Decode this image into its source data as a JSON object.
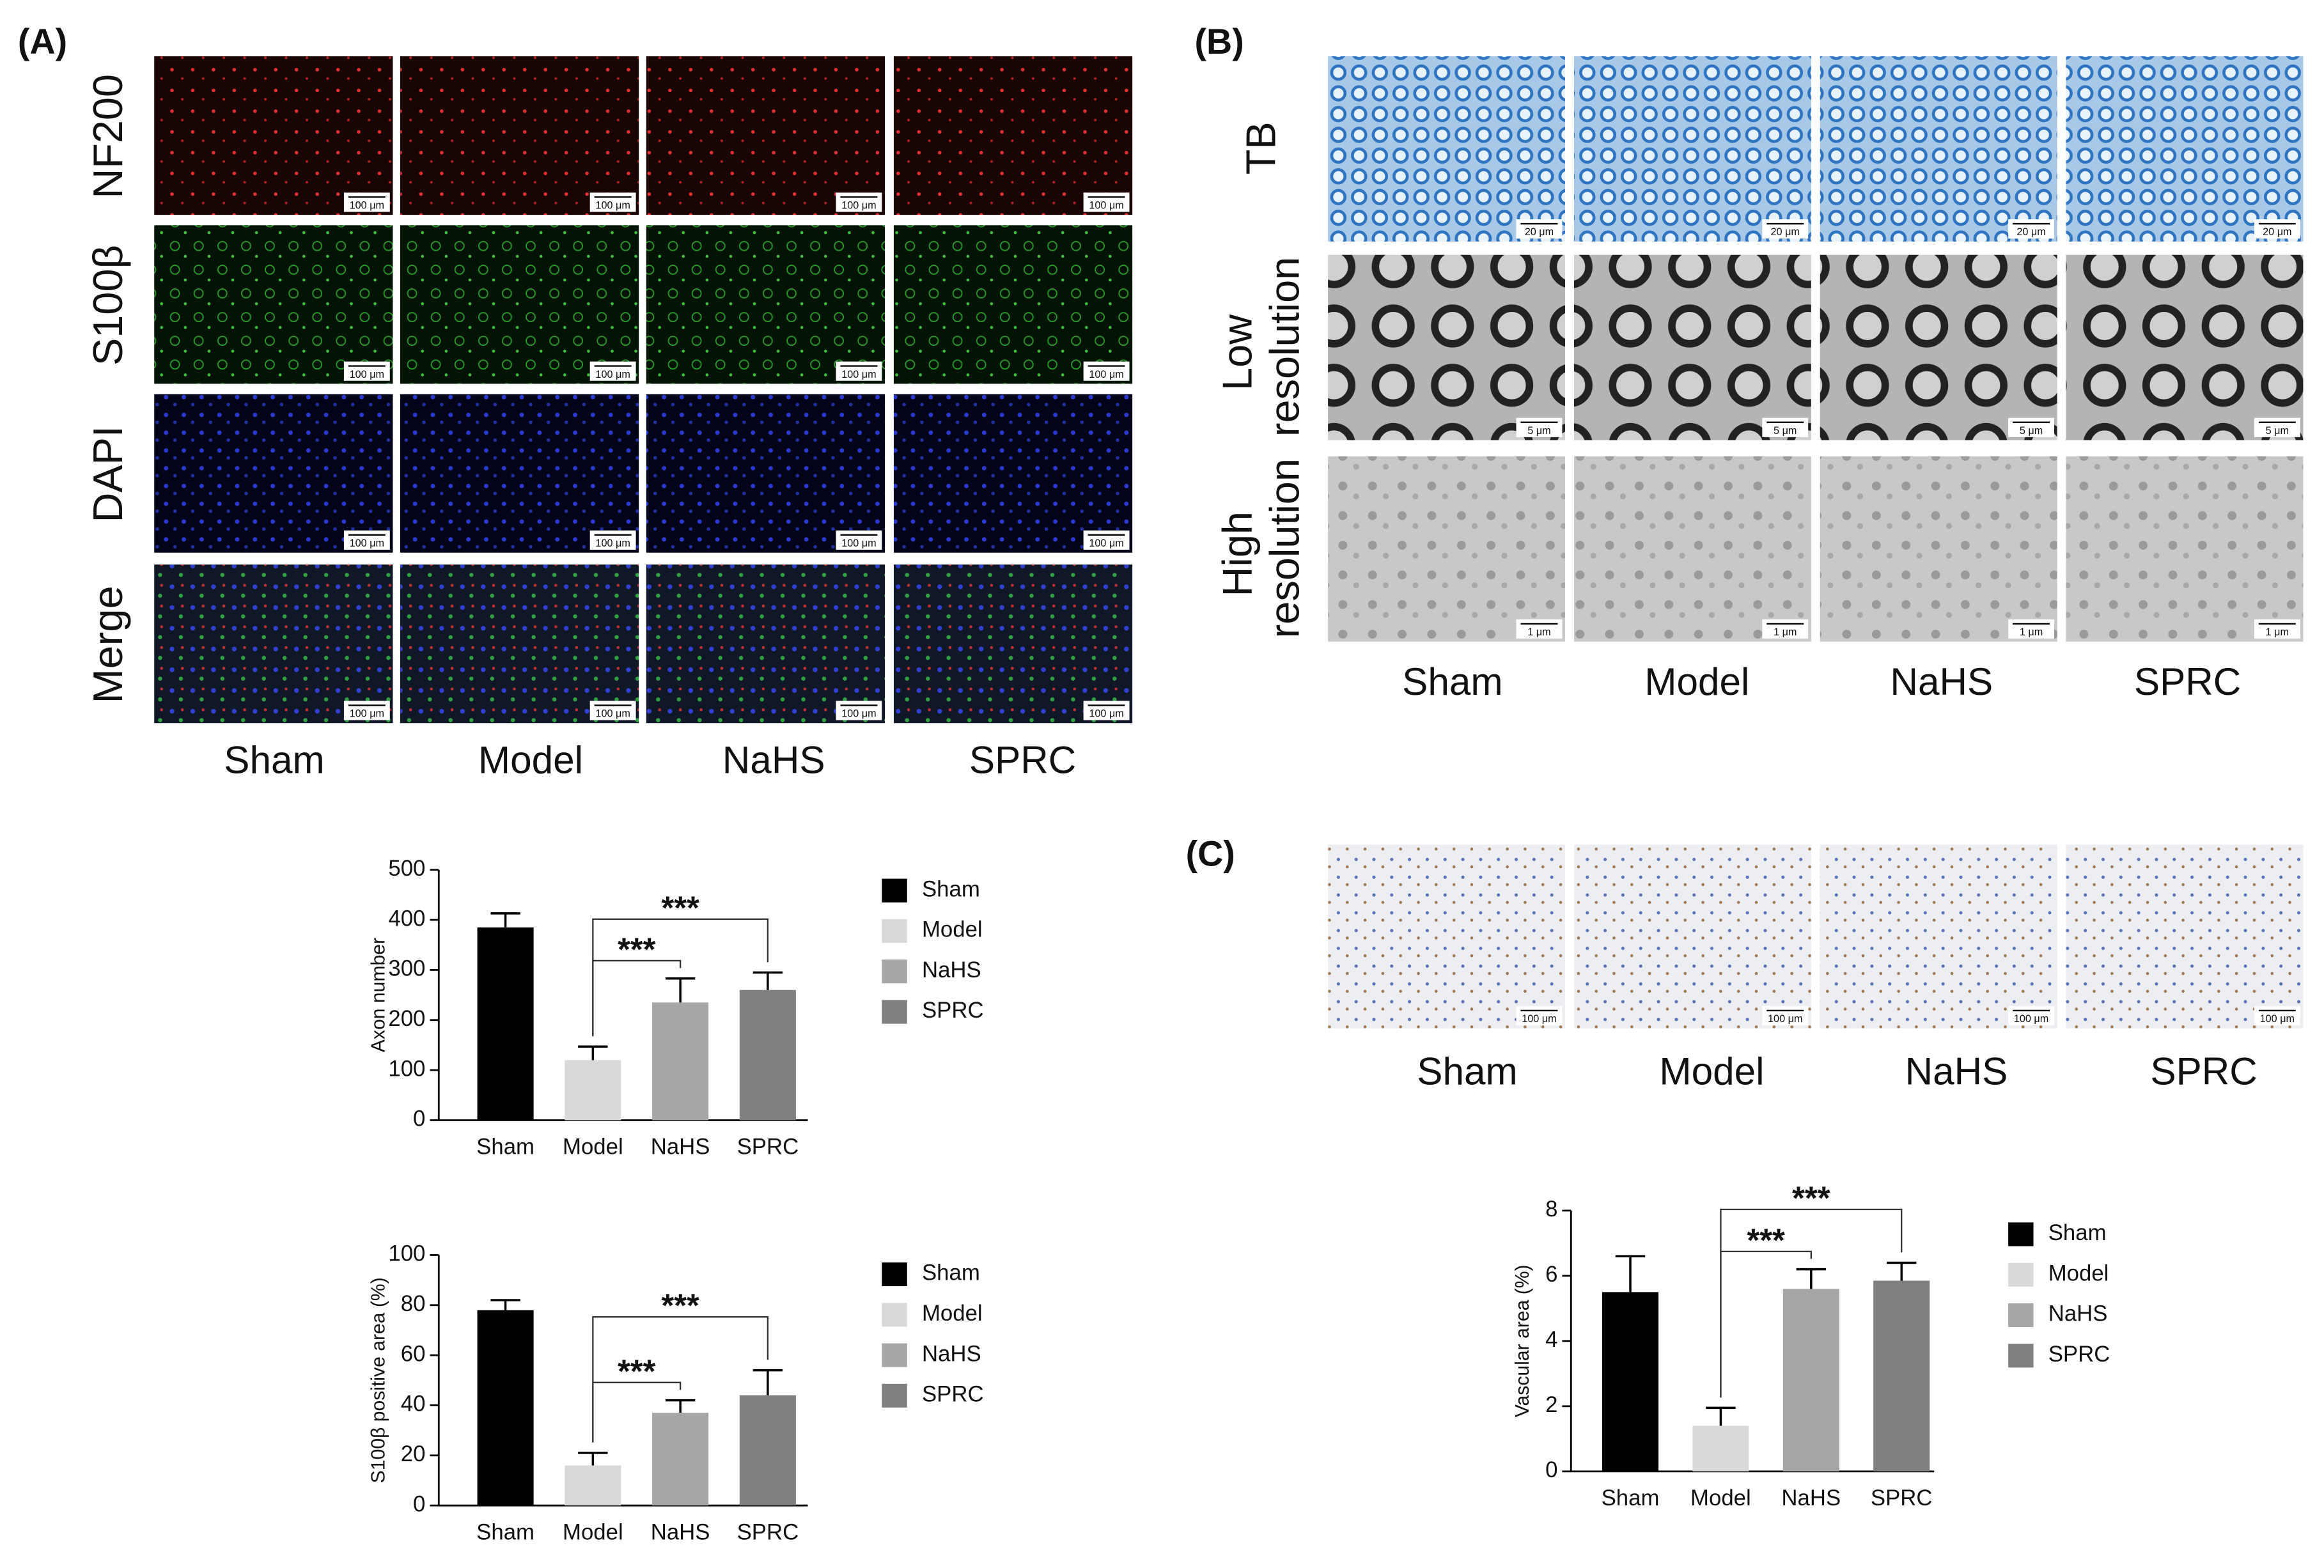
{
  "figure": {
    "panel_labels": [
      "(A)",
      "(B)",
      "(C)"
    ],
    "panel_a": {
      "rows": [
        "NF200",
        "S100β",
        "DAPI",
        "Merge"
      ],
      "row_colors": [
        "#d0202a",
        "#1f9a3a",
        "#1f3aa8",
        "#111111"
      ],
      "columns": [
        "Sham",
        "Model",
        "NaHS",
        "SPRC"
      ],
      "scale_bar": "100 μm"
    },
    "panel_b": {
      "rows": [
        "TB",
        "Low resolution",
        "High resolution"
      ],
      "columns": [
        "Sham",
        "Model",
        "NaHS",
        "SPRC"
      ],
      "scale_bars": [
        "20 μm",
        "5 μm",
        "1 μm"
      ]
    },
    "panel_c": {
      "columns": [
        "Sham",
        "Model",
        "NaHS",
        "SPRC"
      ],
      "scale_bar": "100 μm"
    }
  },
  "chart_data": [
    {
      "type": "bar",
      "y_label": "Axon number",
      "categories": [
        "Sham",
        "Model",
        "NaHS",
        "SPRC"
      ],
      "values": [
        385,
        120,
        235,
        260
      ],
      "errors": [
        28,
        27,
        48,
        35
      ],
      "colors": [
        "#000000",
        "#d9d9d9",
        "#a6a6a6",
        "#7f7f7f"
      ],
      "ylim": [
        0,
        500
      ],
      "yticks": [
        0,
        100,
        200,
        300,
        400,
        500
      ],
      "annotations": [
        {
          "text": "***",
          "between": [
            "Model",
            "NaHS"
          ]
        },
        {
          "text": "***",
          "between": [
            "Model",
            "SPRC"
          ]
        }
      ]
    },
    {
      "type": "bar",
      "y_label": "S100β positive area (%)",
      "categories": [
        "Sham",
        "Model",
        "NaHS",
        "SPRC"
      ],
      "values": [
        78,
        16,
        37,
        44
      ],
      "errors": [
        4,
        5,
        5,
        10
      ],
      "colors": [
        "#000000",
        "#d9d9d9",
        "#a6a6a6",
        "#7f7f7f"
      ],
      "ylim": [
        0,
        100
      ],
      "yticks": [
        0,
        20,
        40,
        60,
        80,
        100
      ],
      "annotations": [
        {
          "text": "***",
          "between": [
            "Model",
            "NaHS"
          ]
        },
        {
          "text": "***",
          "between": [
            "Model",
            "SPRC"
          ]
        }
      ]
    },
    {
      "type": "bar",
      "y_label": "Vascular area (%)",
      "categories": [
        "Sham",
        "Model",
        "NaHS",
        "SPRC"
      ],
      "values": [
        5.5,
        1.4,
        5.6,
        5.85
      ],
      "errors": [
        1.1,
        0.55,
        0.6,
        0.55
      ],
      "colors": [
        "#000000",
        "#d9d9d9",
        "#a6a6a6",
        "#7f7f7f"
      ],
      "ylim": [
        0,
        8
      ],
      "yticks": [
        0,
        2,
        4,
        6,
        8
      ],
      "annotations": [
        {
          "text": "***",
          "between": [
            "Model",
            "NaHS"
          ]
        },
        {
          "text": "***",
          "between": [
            "Model",
            "SPRC"
          ]
        }
      ]
    }
  ]
}
